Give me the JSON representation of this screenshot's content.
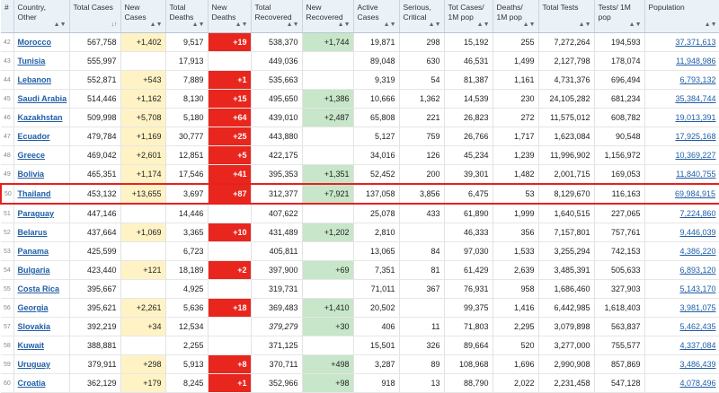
{
  "headers": {
    "idx": "#",
    "country": "Country, Other",
    "total_cases": "Total Cases",
    "new_cases": "New Cases",
    "total_deaths": "Total Deaths",
    "new_deaths": "New Deaths",
    "total_recovered": "Total Recovered",
    "new_recovered": "New Recovered",
    "active_cases": "Active Cases",
    "serious": "Serious, Critical",
    "cases_per_m": "Tot Cases/ 1M pop",
    "deaths_per_m": "Deaths/ 1M pop",
    "total_tests": "Total Tests",
    "tests_per_m": "Tests/ 1M pop",
    "population": "Population"
  },
  "sort_icon": "sort-arrows-icon",
  "colors": {
    "new_cases_bg": "#fff3c5",
    "new_deaths_bg": "#e8261e",
    "new_recovered_bg": "#c8e6c9",
    "highlight_border": "#e82020",
    "link": "#1f5ea8",
    "header_bg": "#eaf1f7"
  },
  "rows": [
    {
      "idx": "42",
      "country": "Morocco",
      "total_cases": "567,758",
      "new_cases": "+1,402",
      "total_deaths": "9,517",
      "new_deaths": "+19",
      "total_recovered": "538,370",
      "new_recovered": "+1,744",
      "active": "19,871",
      "serious": "298",
      "cases_per_m": "15,192",
      "deaths_per_m": "255",
      "total_tests": "7,272,264",
      "tests_per_m": "194,593",
      "population": "37,371,613"
    },
    {
      "idx": "43",
      "country": "Tunisia",
      "total_cases": "555,997",
      "new_cases": "",
      "total_deaths": "17,913",
      "new_deaths": "",
      "total_recovered": "449,036",
      "new_recovered": "",
      "active": "89,048",
      "serious": "630",
      "cases_per_m": "46,531",
      "deaths_per_m": "1,499",
      "total_tests": "2,127,798",
      "tests_per_m": "178,074",
      "population": "11,948,986"
    },
    {
      "idx": "44",
      "country": "Lebanon",
      "total_cases": "552,871",
      "new_cases": "+543",
      "total_deaths": "7,889",
      "new_deaths": "+1",
      "total_recovered": "535,663",
      "new_recovered": "",
      "active": "9,319",
      "serious": "54",
      "cases_per_m": "81,387",
      "deaths_per_m": "1,161",
      "total_tests": "4,731,376",
      "tests_per_m": "696,494",
      "population": "6,793,132"
    },
    {
      "idx": "45",
      "country": "Saudi Arabia",
      "total_cases": "514,446",
      "new_cases": "+1,162",
      "total_deaths": "8,130",
      "new_deaths": "+15",
      "total_recovered": "495,650",
      "new_recovered": "+1,386",
      "active": "10,666",
      "serious": "1,362",
      "cases_per_m": "14,539",
      "deaths_per_m": "230",
      "total_tests": "24,105,282",
      "tests_per_m": "681,234",
      "population": "35,384,744"
    },
    {
      "idx": "46",
      "country": "Kazakhstan",
      "total_cases": "509,998",
      "new_cases": "+5,708",
      "total_deaths": "5,180",
      "new_deaths": "+64",
      "total_recovered": "439,010",
      "new_recovered": "+2,487",
      "active": "65,808",
      "serious": "221",
      "cases_per_m": "26,823",
      "deaths_per_m": "272",
      "total_tests": "11,575,012",
      "tests_per_m": "608,782",
      "population": "19,013,391"
    },
    {
      "idx": "47",
      "country": "Ecuador",
      "total_cases": "479,784",
      "new_cases": "+1,169",
      "total_deaths": "30,777",
      "new_deaths": "+25",
      "total_recovered": "443,880",
      "new_recovered": "",
      "active": "5,127",
      "serious": "759",
      "cases_per_m": "26,766",
      "deaths_per_m": "1,717",
      "total_tests": "1,623,084",
      "tests_per_m": "90,548",
      "population": "17,925,168"
    },
    {
      "idx": "48",
      "country": "Greece",
      "total_cases": "469,042",
      "new_cases": "+2,601",
      "total_deaths": "12,851",
      "new_deaths": "+5",
      "total_recovered": "422,175",
      "new_recovered": "",
      "active": "34,016",
      "serious": "126",
      "cases_per_m": "45,234",
      "deaths_per_m": "1,239",
      "total_tests": "11,996,902",
      "tests_per_m": "1,156,972",
      "population": "10,369,227"
    },
    {
      "idx": "49",
      "country": "Bolivia",
      "total_cases": "465,351",
      "new_cases": "+1,174",
      "total_deaths": "17,546",
      "new_deaths": "+41",
      "total_recovered": "395,353",
      "new_recovered": "+1,351",
      "active": "52,452",
      "serious": "200",
      "cases_per_m": "39,301",
      "deaths_per_m": "1,482",
      "total_tests": "2,001,715",
      "tests_per_m": "169,053",
      "population": "11,840,755"
    },
    {
      "idx": "50",
      "country": "Thailand",
      "total_cases": "453,132",
      "new_cases": "+13,655",
      "total_deaths": "3,697",
      "new_deaths": "+87",
      "total_recovered": "312,377",
      "new_recovered": "+7,921",
      "active": "137,058",
      "serious": "3,856",
      "cases_per_m": "6,475",
      "deaths_per_m": "53",
      "total_tests": "8,129,670",
      "tests_per_m": "116,163",
      "population": "69,984,915",
      "highlight": true
    },
    {
      "idx": "51",
      "country": "Paraguay",
      "total_cases": "447,146",
      "new_cases": "",
      "total_deaths": "14,446",
      "new_deaths": "",
      "total_recovered": "407,622",
      "new_recovered": "",
      "active": "25,078",
      "serious": "433",
      "cases_per_m": "61,890",
      "deaths_per_m": "1,999",
      "total_tests": "1,640,515",
      "tests_per_m": "227,065",
      "population": "7,224,860"
    },
    {
      "idx": "52",
      "country": "Belarus",
      "total_cases": "437,664",
      "new_cases": "+1,069",
      "total_deaths": "3,365",
      "new_deaths": "+10",
      "total_recovered": "431,489",
      "new_recovered": "+1,202",
      "active": "2,810",
      "serious": "",
      "cases_per_m": "46,333",
      "deaths_per_m": "356",
      "total_tests": "7,157,801",
      "tests_per_m": "757,761",
      "population": "9,446,039"
    },
    {
      "idx": "53",
      "country": "Panama",
      "total_cases": "425,599",
      "new_cases": "",
      "total_deaths": "6,723",
      "new_deaths": "",
      "total_recovered": "405,811",
      "new_recovered": "",
      "active": "13,065",
      "serious": "84",
      "cases_per_m": "97,030",
      "deaths_per_m": "1,533",
      "total_tests": "3,255,294",
      "tests_per_m": "742,153",
      "population": "4,386,220"
    },
    {
      "idx": "54",
      "country": "Bulgaria",
      "total_cases": "423,440",
      "new_cases": "+121",
      "total_deaths": "18,189",
      "new_deaths": "+2",
      "total_recovered": "397,900",
      "new_recovered": "+69",
      "active": "7,351",
      "serious": "81",
      "cases_per_m": "61,429",
      "deaths_per_m": "2,639",
      "total_tests": "3,485,391",
      "tests_per_m": "505,633",
      "population": "6,893,120"
    },
    {
      "idx": "55",
      "country": "Costa Rica",
      "total_cases": "395,667",
      "new_cases": "",
      "total_deaths": "4,925",
      "new_deaths": "",
      "total_recovered": "319,731",
      "new_recovered": "",
      "active": "71,011",
      "serious": "367",
      "cases_per_m": "76,931",
      "deaths_per_m": "958",
      "total_tests": "1,686,460",
      "tests_per_m": "327,903",
      "population": "5,143,170"
    },
    {
      "idx": "56",
      "country": "Georgia",
      "total_cases": "395,621",
      "new_cases": "+2,261",
      "total_deaths": "5,636",
      "new_deaths": "+18",
      "total_recovered": "369,483",
      "new_recovered": "+1,410",
      "active": "20,502",
      "serious": "",
      "cases_per_m": "99,375",
      "deaths_per_m": "1,416",
      "total_tests": "6,442,985",
      "tests_per_m": "1,618,403",
      "population": "3,981,075"
    },
    {
      "idx": "57",
      "country": "Slovakia",
      "total_cases": "392,219",
      "new_cases": "+34",
      "total_deaths": "12,534",
      "new_deaths": "",
      "total_recovered": "379,279",
      "new_recovered": "+30",
      "active": "406",
      "serious": "11",
      "cases_per_m": "71,803",
      "deaths_per_m": "2,295",
      "total_tests": "3,079,898",
      "tests_per_m": "563,837",
      "population": "5,462,435",
      "recovered_italic": true
    },
    {
      "idx": "58",
      "country": "Kuwait",
      "total_cases": "388,881",
      "new_cases": "",
      "total_deaths": "2,255",
      "new_deaths": "",
      "total_recovered": "371,125",
      "new_recovered": "",
      "active": "15,501",
      "serious": "326",
      "cases_per_m": "89,664",
      "deaths_per_m": "520",
      "total_tests": "3,277,000",
      "tests_per_m": "755,577",
      "population": "4,337,084"
    },
    {
      "idx": "59",
      "country": "Uruguay",
      "total_cases": "379,911",
      "new_cases": "+298",
      "total_deaths": "5,913",
      "new_deaths": "+8",
      "total_recovered": "370,711",
      "new_recovered": "+498",
      "active": "3,287",
      "serious": "89",
      "cases_per_m": "108,968",
      "deaths_per_m": "1,696",
      "total_tests": "2,990,908",
      "tests_per_m": "857,869",
      "population": "3,486,439"
    },
    {
      "idx": "60",
      "country": "Croatia",
      "total_cases": "362,129",
      "new_cases": "+179",
      "total_deaths": "8,245",
      "new_deaths": "+1",
      "total_recovered": "352,966",
      "new_recovered": "+98",
      "active": "918",
      "serious": "13",
      "cases_per_m": "88,790",
      "deaths_per_m": "2,022",
      "total_tests": "2,231,458",
      "tests_per_m": "547,128",
      "population": "4,078,496"
    }
  ]
}
